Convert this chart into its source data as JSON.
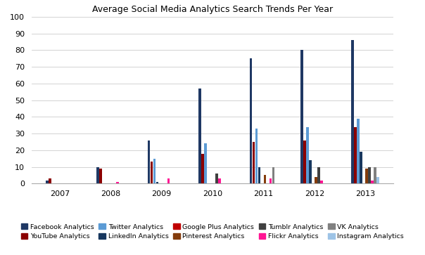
{
  "title": "Average Social Media Analytics Search Trends Per Year",
  "years": [
    2007,
    2008,
    2009,
    2010,
    2011,
    2012,
    2013
  ],
  "series_names": [
    "Facebook Analytics",
    "YouTube Analytics",
    "Twitter Analytics",
    "LinkedIn Analytics",
    "Google Plus Analytics",
    "Pinterest Analytics",
    "Tumblr Analytics",
    "Flickr Analytics",
    "VK Analytics",
    "Instagram Analytics"
  ],
  "series_data": {
    "Facebook Analytics": [
      2,
      10,
      26,
      57,
      75,
      80,
      86
    ],
    "YouTube Analytics": [
      3,
      9,
      13,
      18,
      25,
      26,
      34
    ],
    "Twitter Analytics": [
      0,
      0,
      15,
      24,
      33,
      34,
      39
    ],
    "LinkedIn Analytics": [
      0,
      0,
      1,
      0,
      10,
      14,
      19
    ],
    "Google Plus Analytics": [
      0,
      0,
      0,
      0,
      0,
      0,
      0
    ],
    "Pinterest Analytics": [
      0,
      0,
      0,
      0,
      5,
      4,
      9
    ],
    "Tumblr Analytics": [
      0,
      0,
      0,
      6,
      0,
      10,
      10
    ],
    "Flickr Analytics": [
      0,
      1,
      3,
      3,
      3,
      2,
      2
    ],
    "VK Analytics": [
      0,
      0,
      0,
      0,
      10,
      0,
      10
    ],
    "Instagram Analytics": [
      0,
      0,
      0,
      0,
      0,
      0,
      4
    ]
  },
  "bar_colors": [
    "#1F3864",
    "#8B0000",
    "#5B9BD5",
    "#17375E",
    "#C00000",
    "#843C0C",
    "#404040",
    "#FF1493",
    "#808080",
    "#9DC3E6"
  ],
  "legend_order": [
    "Facebook Analytics",
    "YouTube Analytics",
    "Twitter Analytics",
    "LinkedIn Analytics",
    "Google Plus Analytics",
    "Pinterest Analytics",
    "Tumblr Analytics",
    "Flickr Analytics",
    "VK Analytics",
    "Instagram Analytics"
  ],
  "ylim": [
    0,
    100
  ],
  "yticks": [
    0,
    10,
    20,
    30,
    40,
    50,
    60,
    70,
    80,
    90,
    100
  ],
  "figsize": [
    6.04,
    3.63
  ],
  "dpi": 100
}
